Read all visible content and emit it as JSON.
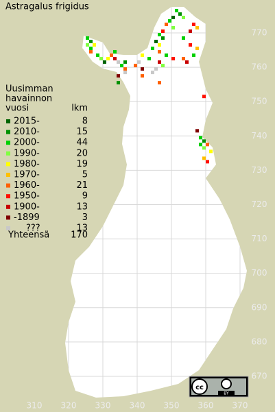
{
  "title": "Astragalus frigidus",
  "legend": {
    "header": [
      "Uusimman",
      "havainnon",
      "vuosi"
    ],
    "count_header": "lkm",
    "entries": [
      {
        "label": "2015-",
        "count": 8,
        "color": "#006400"
      },
      {
        "label": "2010-",
        "count": 15,
        "color": "#009000"
      },
      {
        "label": "2000-",
        "count": 44,
        "color": "#00d000"
      },
      {
        "label": "1990-",
        "count": 20,
        "color": "#80ff40"
      },
      {
        "label": "1980-",
        "count": 19,
        "color": "#ffff00"
      },
      {
        "label": "1970-",
        "count": 5,
        "color": "#ffc000"
      },
      {
        "label": "1960-",
        "count": 21,
        "color": "#ff6000"
      },
      {
        "label": "1950-",
        "count": 9,
        "color": "#ff1000"
      },
      {
        "label": "1900-",
        "count": 13,
        "color": "#c80000"
      },
      {
        "label": "-1899",
        "count": 3,
        "color": "#800000"
      },
      {
        "label": "???",
        "count": 13,
        "color": "#c8c8c8"
      }
    ],
    "total_label": "Yhteensä",
    "total": 170
  },
  "map": {
    "northing_ticks": [
      770,
      760,
      750,
      740,
      730,
      720,
      710,
      700,
      690,
      680,
      670
    ],
    "easting_ticks": [
      310,
      320,
      330,
      340,
      350,
      360,
      370
    ],
    "observations": [
      {
        "n": 768,
        "e": 325,
        "period": 2
      },
      {
        "n": 767,
        "e": 326,
        "period": 1
      },
      {
        "n": 766,
        "e": 325,
        "period": 3
      },
      {
        "n": 766,
        "e": 327,
        "period": 4
      },
      {
        "n": 765,
        "e": 326,
        "period": 2
      },
      {
        "n": 764,
        "e": 326,
        "period": 6
      },
      {
        "n": 763,
        "e": 328,
        "period": 2
      },
      {
        "n": 762,
        "e": 329,
        "period": 3
      },
      {
        "n": 761,
        "e": 330,
        "period": 0
      },
      {
        "n": 762,
        "e": 331,
        "period": 4
      },
      {
        "n": 763,
        "e": 332,
        "period": 6
      },
      {
        "n": 764,
        "e": 333,
        "period": 2
      },
      {
        "n": 762,
        "e": 333,
        "period": 8
      },
      {
        "n": 761,
        "e": 334,
        "period": 10
      },
      {
        "n": 760,
        "e": 335,
        "period": 2
      },
      {
        "n": 759,
        "e": 336,
        "period": 6
      },
      {
        "n": 761,
        "e": 336,
        "period": 1
      },
      {
        "n": 758,
        "e": 336,
        "period": 10
      },
      {
        "n": 757,
        "e": 334,
        "period": 9
      },
      {
        "n": 776,
        "e": 351,
        "period": 2
      },
      {
        "n": 775,
        "e": 352,
        "period": 1
      },
      {
        "n": 774,
        "e": 350,
        "period": 0
      },
      {
        "n": 773,
        "e": 349,
        "period": 2
      },
      {
        "n": 772,
        "e": 348,
        "period": 6
      },
      {
        "n": 771,
        "e": 350,
        "period": 3
      },
      {
        "n": 770,
        "e": 347,
        "period": 7
      },
      {
        "n": 769,
        "e": 346,
        "period": 2
      },
      {
        "n": 768,
        "e": 347,
        "period": 1
      },
      {
        "n": 767,
        "e": 345,
        "period": 0
      },
      {
        "n": 766,
        "e": 346,
        "period": 4
      },
      {
        "n": 765,
        "e": 344,
        "period": 2
      },
      {
        "n": 764,
        "e": 346,
        "period": 6
      },
      {
        "n": 763,
        "e": 348,
        "period": 2
      },
      {
        "n": 762,
        "e": 350,
        "period": 7
      },
      {
        "n": 761,
        "e": 346,
        "period": 8
      },
      {
        "n": 760,
        "e": 347,
        "period": 3
      },
      {
        "n": 759,
        "e": 345,
        "period": 10
      },
      {
        "n": 758,
        "e": 344,
        "period": 10
      },
      {
        "n": 762,
        "e": 343,
        "period": 2
      },
      {
        "n": 763,
        "e": 341,
        "period": 4
      },
      {
        "n": 761,
        "e": 340,
        "period": 10
      },
      {
        "n": 760,
        "e": 339,
        "period": 6
      },
      {
        "n": 759,
        "e": 341,
        "period": 9
      },
      {
        "n": 772,
        "e": 356,
        "period": 7
      },
      {
        "n": 771,
        "e": 357,
        "period": 5
      },
      {
        "n": 770,
        "e": 355,
        "period": 8
      },
      {
        "n": 774,
        "e": 353,
        "period": 3
      },
      {
        "n": 768,
        "e": 353,
        "period": 2
      },
      {
        "n": 766,
        "e": 355,
        "period": 7
      },
      {
        "n": 765,
        "e": 357,
        "period": 5
      },
      {
        "n": 762,
        "e": 353,
        "period": 6
      },
      {
        "n": 761,
        "e": 354,
        "period": 8
      },
      {
        "n": 763,
        "e": 356,
        "period": 2
      },
      {
        "n": 757,
        "e": 341,
        "period": 6
      },
      {
        "n": 755,
        "e": 334,
        "period": 1
      },
      {
        "n": 755,
        "e": 346,
        "period": 6
      },
      {
        "n": 751,
        "e": 359,
        "period": 7
      },
      {
        "n": 741,
        "e": 357,
        "period": 9
      },
      {
        "n": 739,
        "e": 358,
        "period": 2
      },
      {
        "n": 738,
        "e": 359,
        "period": 1
      },
      {
        "n": 737,
        "e": 360,
        "period": 6
      },
      {
        "n": 736,
        "e": 359,
        "period": 3
      },
      {
        "n": 735,
        "e": 361,
        "period": 4
      },
      {
        "n": 733,
        "e": 359,
        "period": 5
      },
      {
        "n": 732,
        "e": 360,
        "period": 7
      },
      {
        "n": 737,
        "e": 358,
        "period": 2
      }
    ]
  },
  "license": "BY"
}
